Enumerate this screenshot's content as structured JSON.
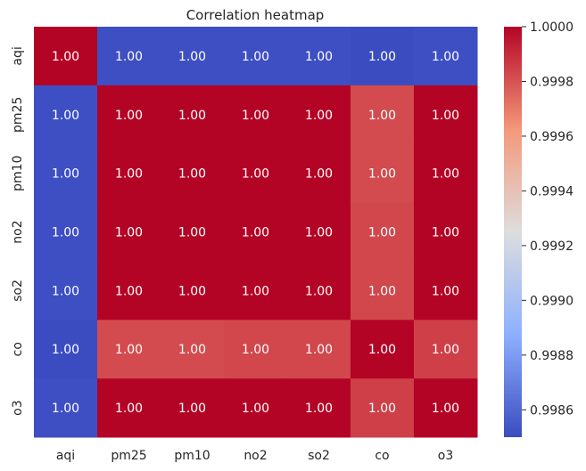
{
  "chart_data": {
    "type": "heatmap",
    "title": "Correlation heatmap",
    "x_categories": [
      "aqi",
      "pm25",
      "pm10",
      "no2",
      "so2",
      "co",
      "o3"
    ],
    "y_categories": [
      "aqi",
      "pm25",
      "pm10",
      "no2",
      "so2",
      "co",
      "o3"
    ],
    "values": [
      [
        1.0,
        0.99851,
        0.99851,
        0.99851,
        0.99851,
        0.9985,
        0.99851
      ],
      [
        0.99851,
        1.0,
        1.0,
        1.0,
        1.0,
        0.99982,
        1.0
      ],
      [
        0.99851,
        1.0,
        1.0,
        1.0,
        1.0,
        0.99982,
        1.0
      ],
      [
        0.99851,
        1.0,
        1.0,
        1.0,
        1.0,
        0.99983,
        1.0
      ],
      [
        0.99851,
        1.0,
        1.0,
        1.0,
        1.0,
        0.99983,
        1.0
      ],
      [
        0.9985,
        0.99982,
        0.99982,
        0.99983,
        0.99983,
        1.0,
        0.99985
      ],
      [
        0.99851,
        1.0,
        1.0,
        1.0,
        1.0,
        0.99985,
        1.0
      ]
    ],
    "cell_labels": [
      [
        "1.00",
        "1.00",
        "1.00",
        "1.00",
        "1.00",
        "1.00",
        "1.00"
      ],
      [
        "1.00",
        "1.00",
        "1.00",
        "1.00",
        "1.00",
        "1.00",
        "1.00"
      ],
      [
        "1.00",
        "1.00",
        "1.00",
        "1.00",
        "1.00",
        "1.00",
        "1.00"
      ],
      [
        "1.00",
        "1.00",
        "1.00",
        "1.00",
        "1.00",
        "1.00",
        "1.00"
      ],
      [
        "1.00",
        "1.00",
        "1.00",
        "1.00",
        "1.00",
        "1.00",
        "1.00"
      ],
      [
        "1.00",
        "1.00",
        "1.00",
        "1.00",
        "1.00",
        "1.00",
        "1.00"
      ],
      [
        "1.00",
        "1.00",
        "1.00",
        "1.00",
        "1.00",
        "1.00",
        "1.00"
      ]
    ],
    "colorscale": "coolwarm",
    "colorbar": {
      "min": 0.9985,
      "max": 1.0,
      "ticks": [
        0.9986,
        0.9988,
        0.999,
        0.9992,
        0.9994,
        0.9996,
        0.9998,
        1.0
      ],
      "tick_labels": [
        "0.9986",
        "0.9988",
        "0.9990",
        "0.9992",
        "0.9994",
        "0.9996",
        "0.9998",
        "1.0000"
      ]
    },
    "grid": false
  }
}
